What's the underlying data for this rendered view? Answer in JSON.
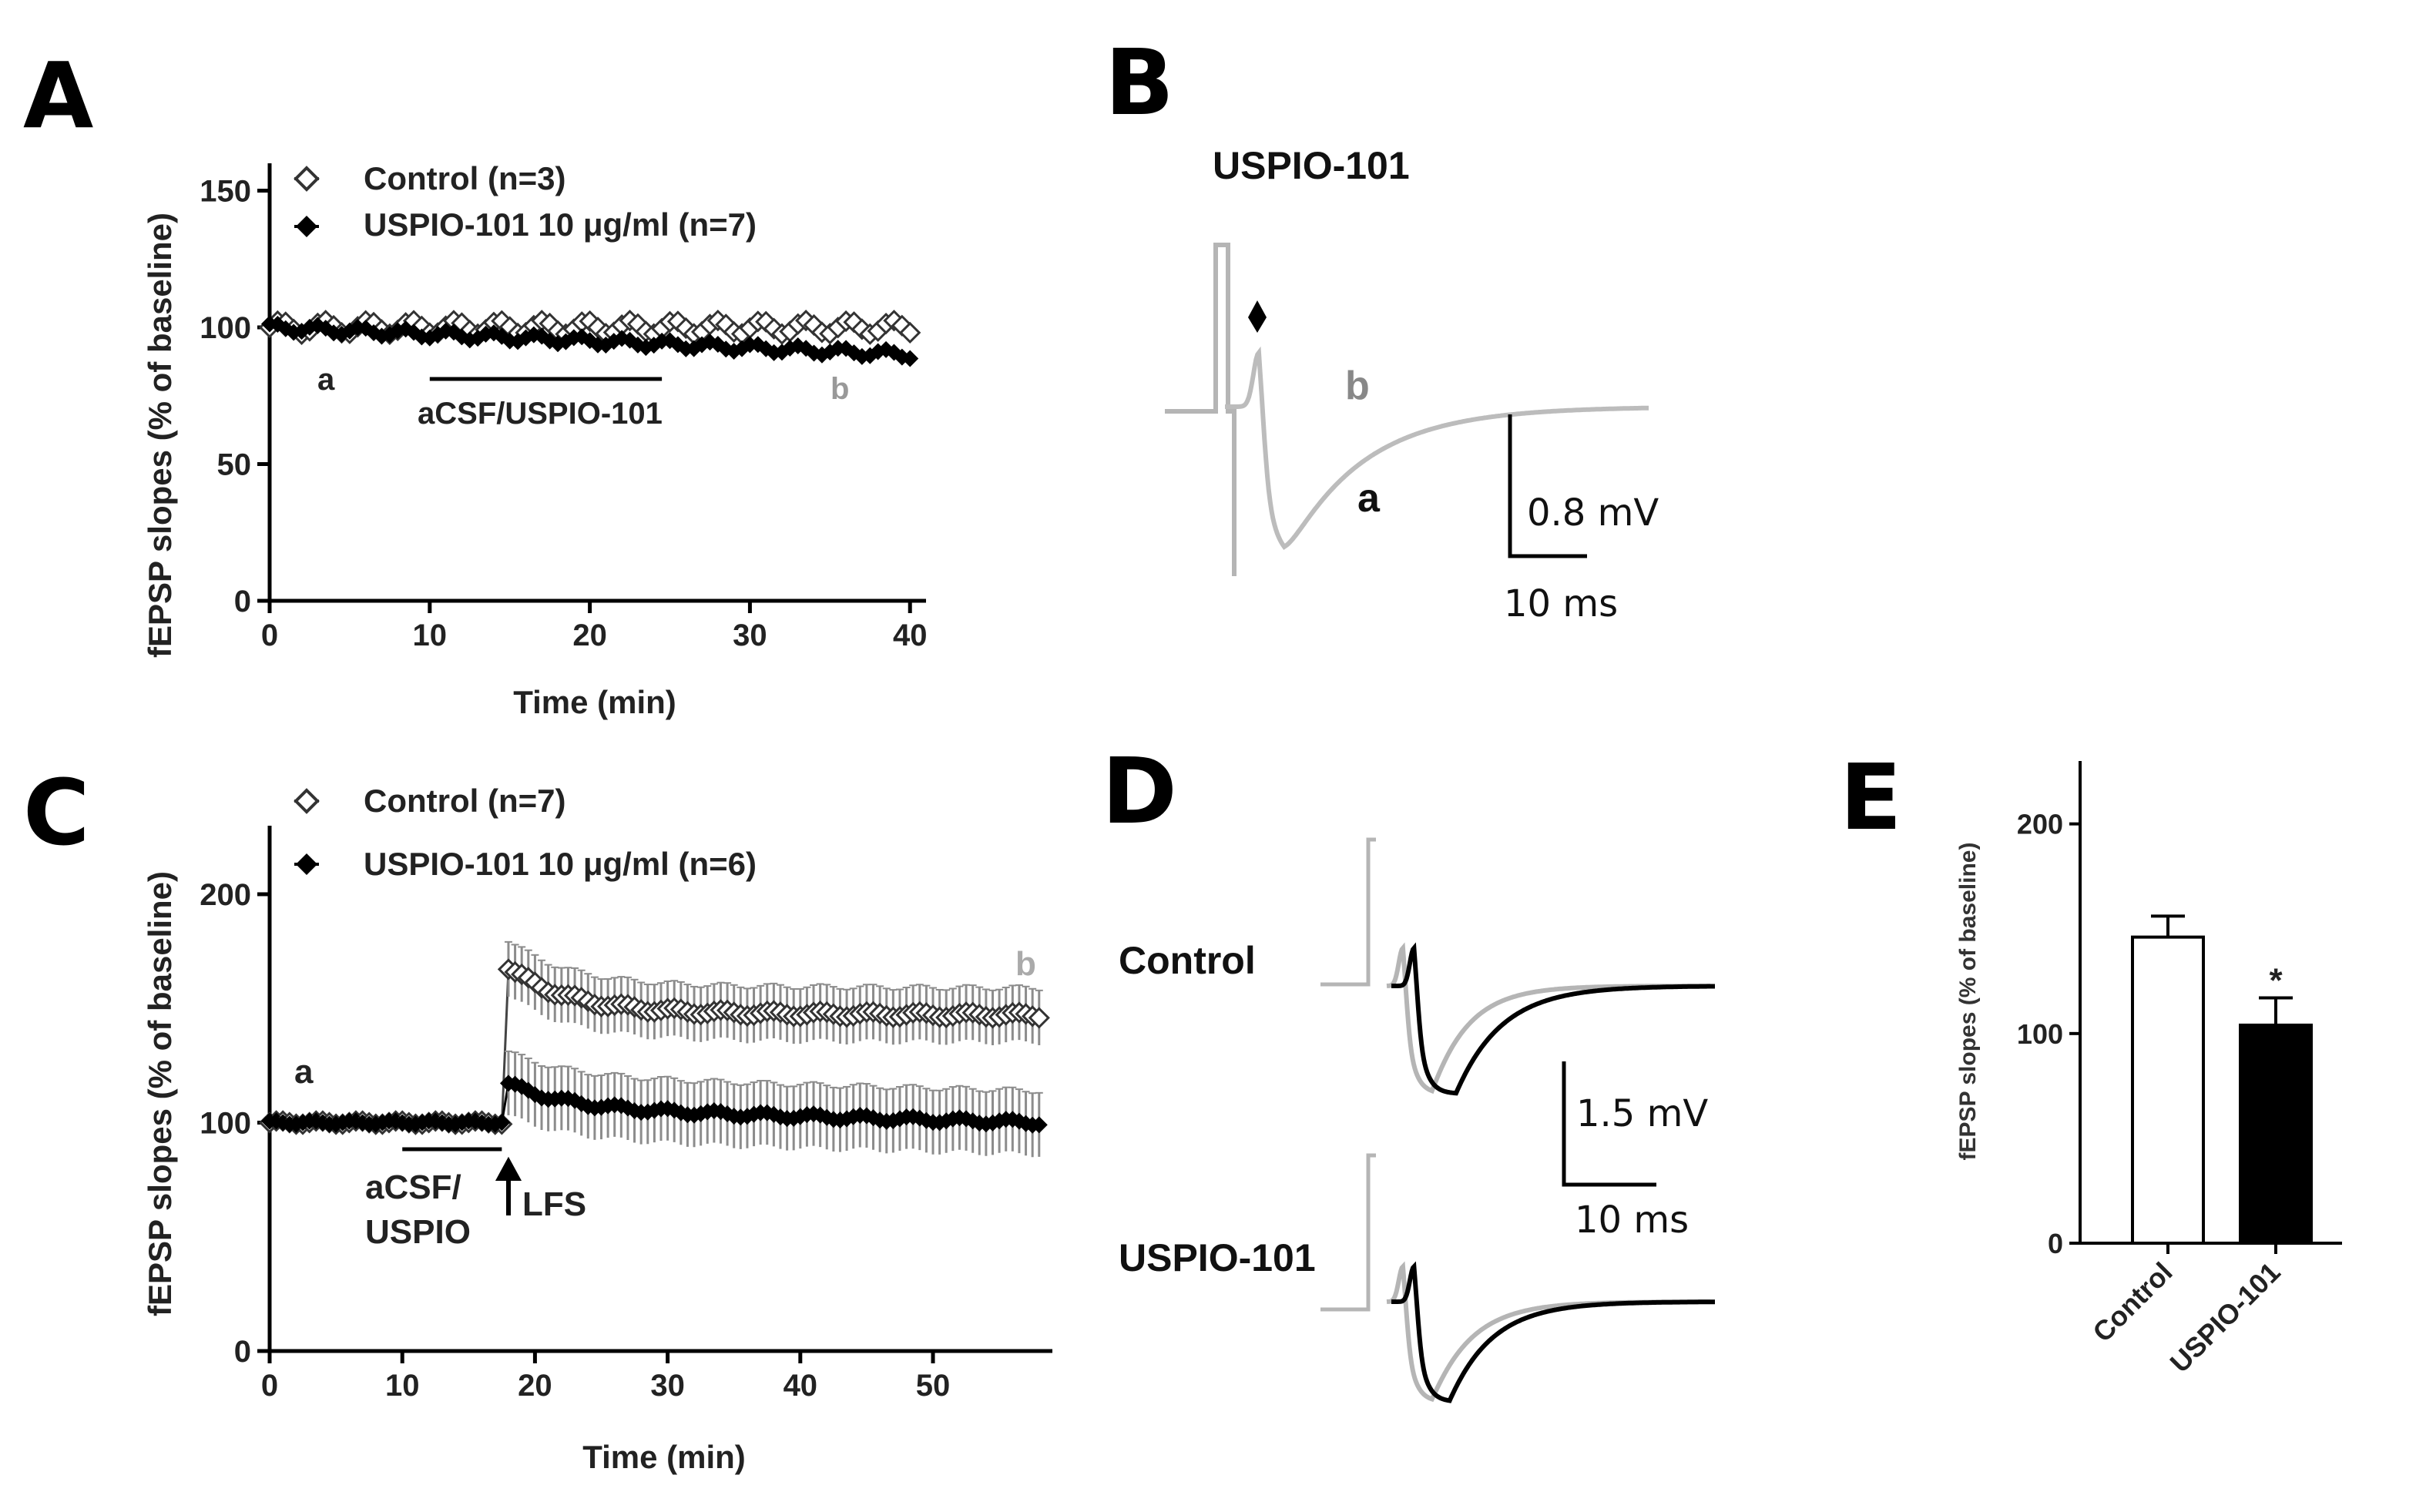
{
  "panels": {
    "A": "A",
    "B": "B",
    "C": "C",
    "D": "D",
    "E": "E"
  },
  "colors": {
    "black": "#000000",
    "gray": "#b0b0b0",
    "errorbar": "#888888"
  },
  "chart_data": [
    {
      "id": "A",
      "type": "scatter",
      "xlabel": "Time (min)",
      "ylabel": "fEPSP slopes (% of baseline)",
      "xlim": [
        0,
        41
      ],
      "ylim": [
        0,
        160
      ],
      "xticks": [
        "0",
        "10",
        "20",
        "30",
        "40"
      ],
      "yticks": [
        "0",
        "50",
        "100",
        "150"
      ],
      "series": [
        {
          "name": "Control (n=3)",
          "marker": "open-diamond",
          "start": 0,
          "end": 40,
          "step": 0.5,
          "y_start": 100,
          "y_end": 100,
          "ripple": 2.5,
          "err": 2
        },
        {
          "name": "USPIO-101 10 μg/ml (n=7)",
          "marker": "filled-diamond",
          "start": 0,
          "end": 40,
          "step": 0.5,
          "y_start": 100,
          "y_end": 90,
          "ripple": 1.5,
          "err": 2
        }
      ],
      "annotations": {
        "a": "a",
        "b": "b",
        "bar_label": "aCSF/USPIO-101",
        "bar": [
          10,
          24.5
        ]
      }
    },
    {
      "id": "B",
      "type": "line",
      "title": "USPIO-101",
      "a_label": "a",
      "b_label": "b",
      "scale_v": "0.8 mV",
      "scale_t": "10 ms"
    },
    {
      "id": "C",
      "type": "scatter",
      "xlabel": "Time (min)",
      "ylabel": "fEPSP slopes (% of baseline)",
      "xlim": [
        0,
        59
      ],
      "ylim": [
        0,
        230
      ],
      "xticks": [
        "0",
        "10",
        "20",
        "30",
        "40",
        "50"
      ],
      "yticks": [
        "0",
        "100",
        "200"
      ],
      "series": [
        {
          "name": "Control (n=7)",
          "marker": "open-diamond",
          "baseline": 100,
          "peak": 168,
          "plateau": 148,
          "end_value": 147,
          "err_post": 12
        },
        {
          "name": "USPIO-101 10 μg/ml (n=6)",
          "marker": "filled-diamond",
          "baseline": 100,
          "peak": 117,
          "plateau": 106,
          "end_value": 100,
          "err_post": 14
        }
      ],
      "lfs_time": 18,
      "annotations": {
        "a": "a",
        "b": "b",
        "bar_label_1": "aCSF/",
        "bar_label_2": "USPIO",
        "lfs": "LFS",
        "bar": [
          10,
          17.5
        ]
      }
    },
    {
      "id": "D",
      "type": "line",
      "row_labels": [
        "Control",
        "USPIO-101"
      ],
      "scale_v": "1.5 mV",
      "scale_t": "10 ms"
    },
    {
      "id": "E",
      "type": "bar",
      "ylabel": "fEPSP slopes (% of baseline)",
      "ylim": [
        0,
        230
      ],
      "yticks": [
        "0",
        "100",
        "200"
      ],
      "categories": [
        "Control",
        "USPIO-101"
      ],
      "values": [
        146,
        104
      ],
      "errors": [
        10,
        13
      ],
      "fills": [
        "#ffffff",
        "#000000"
      ],
      "significance": "*"
    }
  ]
}
